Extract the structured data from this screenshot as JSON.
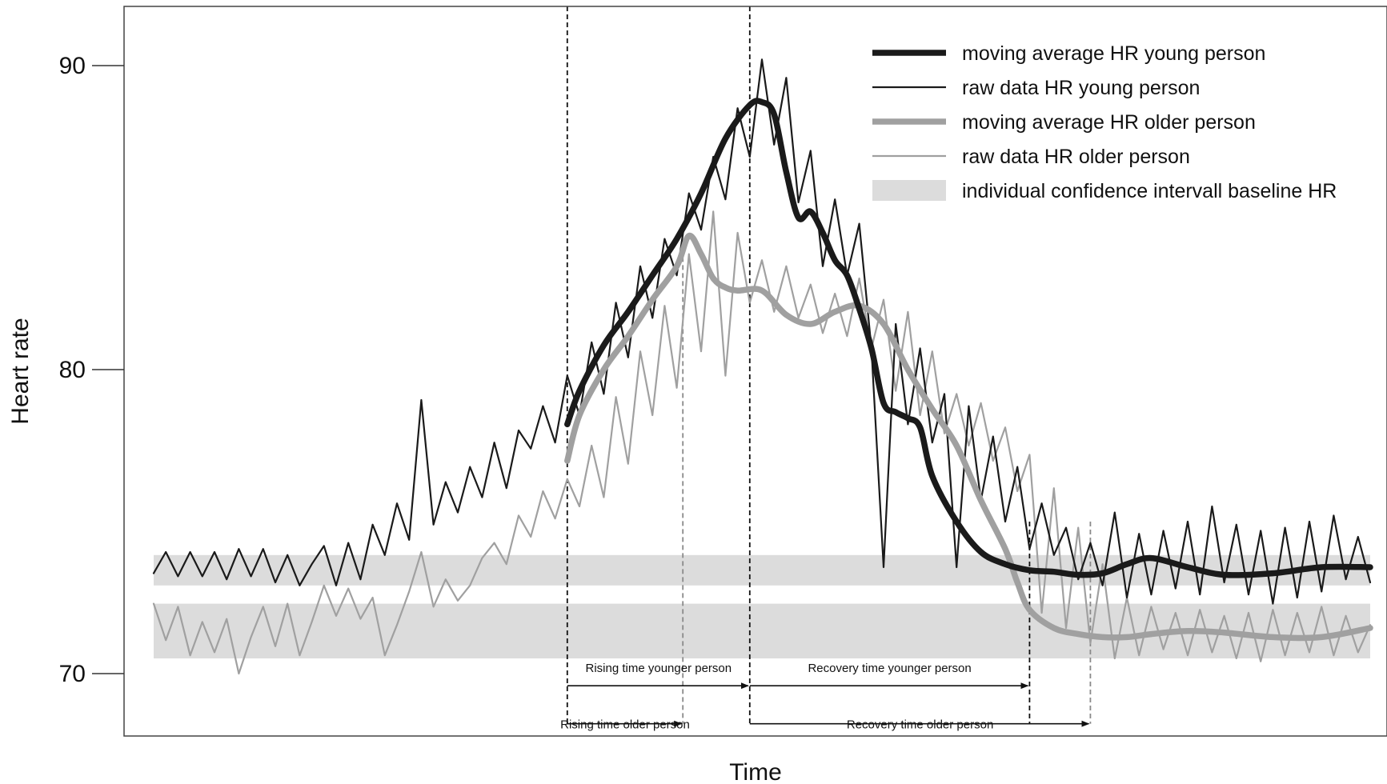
{
  "chart_data": {
    "type": "line",
    "title": "",
    "xlabel": "Time",
    "ylabel": "Heart rate",
    "xlim": [
      0,
      100
    ],
    "ylim": [
      68,
      92
    ],
    "yticks": [
      70,
      80,
      90
    ],
    "grid": false,
    "legend_position": "top-right",
    "colors": {
      "young": "#1a1a1a",
      "older": "#a0a0a0",
      "band": "#dcdcdc",
      "frame": "#444444"
    },
    "bands": [
      {
        "name": "young",
        "range": [
          72.9,
          73.9
        ]
      },
      {
        "name": "older",
        "range": [
          70.5,
          72.3
        ]
      }
    ],
    "series": [
      {
        "name": "moving average HR young person",
        "key": "young_avg",
        "x": [
          34,
          35,
          37,
          39,
          41,
          43,
          45,
          47,
          49,
          50,
          51,
          52,
          53,
          54,
          55,
          56,
          57,
          58,
          59,
          60,
          61,
          62,
          63,
          64,
          66,
          68,
          70,
          72,
          74,
          76,
          78,
          80,
          82,
          85,
          88,
          92,
          96,
          100
        ],
        "y": [
          78.2,
          79.3,
          80.8,
          81.9,
          83.1,
          84.3,
          85.8,
          87.6,
          88.7,
          88.8,
          88.4,
          86.5,
          85.0,
          85.2,
          84.5,
          83.6,
          83.1,
          82.0,
          80.7,
          78.9,
          78.6,
          78.4,
          78.1,
          76.5,
          75.0,
          74.0,
          73.6,
          73.4,
          73.35,
          73.25,
          73.3,
          73.6,
          73.8,
          73.5,
          73.25,
          73.3,
          73.5,
          73.5
        ]
      },
      {
        "name": "raw data HR young person",
        "key": "young_raw",
        "x": [
          0,
          1,
          2,
          3,
          4,
          5,
          6,
          7,
          8,
          9,
          10,
          11,
          12,
          13,
          14,
          15,
          16,
          17,
          18,
          19,
          20,
          21,
          22,
          23,
          24,
          25,
          26,
          27,
          28,
          29,
          30,
          31,
          32,
          33,
          34,
          35,
          36,
          37,
          38,
          39,
          40,
          41,
          42,
          43,
          44,
          45,
          46,
          47,
          48,
          49,
          50,
          51,
          52,
          53,
          54,
          55,
          56,
          57,
          58,
          59,
          60,
          61,
          62,
          63,
          64,
          65,
          66,
          67,
          68,
          69,
          70,
          71,
          72,
          73,
          74,
          75,
          76,
          77,
          78,
          79,
          80,
          81,
          82,
          83,
          84,
          85,
          86,
          87,
          88,
          89,
          90,
          91,
          92,
          93,
          94,
          95,
          96,
          97,
          98,
          99,
          100
        ],
        "y": [
          73.3,
          74.0,
          73.2,
          74.0,
          73.2,
          74.0,
          73.1,
          74.1,
          73.2,
          74.1,
          73.0,
          73.9,
          72.9,
          73.6,
          74.2,
          72.9,
          74.3,
          73.1,
          74.9,
          73.9,
          75.6,
          74.4,
          79.0,
          74.9,
          76.3,
          75.3,
          76.8,
          75.8,
          77.6,
          76.1,
          78.0,
          77.4,
          78.8,
          77.6,
          79.8,
          78.5,
          80.9,
          79.2,
          82.2,
          80.4,
          83.4,
          81.7,
          84.3,
          83.1,
          85.8,
          84.6,
          87.0,
          85.6,
          88.6,
          87.0,
          90.2,
          87.4,
          89.6,
          85.5,
          87.2,
          83.4,
          85.6,
          83.1,
          84.8,
          80.7,
          73.5,
          81.5,
          78.2,
          80.7,
          77.6,
          79.2,
          73.5,
          78.8,
          75.7,
          77.8,
          75.0,
          76.8,
          74.1,
          75.6,
          73.9,
          74.8,
          73.1,
          74.3,
          72.9,
          75.3,
          72.5,
          74.6,
          72.6,
          74.7,
          72.8,
          75.0,
          72.6,
          75.5,
          73.0,
          74.9,
          72.6,
          74.7,
          72.3,
          74.8,
          72.5,
          75.0,
          72.7,
          75.2,
          73.1,
          74.5,
          73.0
        ]
      },
      {
        "name": "moving average HR older person",
        "key": "older_avg",
        "x": [
          34,
          35,
          37,
          39,
          41,
          43,
          44,
          45,
          46,
          47,
          48,
          50,
          52,
          54,
          56,
          58,
          60,
          62,
          64,
          66,
          68,
          70,
          71,
          72,
          74,
          76,
          78,
          80,
          82,
          85,
          88,
          92,
          96,
          100
        ],
        "y": [
          77.0,
          78.5,
          80.0,
          81.1,
          82.3,
          83.4,
          84.4,
          83.8,
          83.0,
          82.7,
          82.6,
          82.6,
          81.8,
          81.5,
          81.9,
          82.1,
          81.5,
          80.0,
          78.7,
          77.5,
          75.7,
          74.1,
          73.0,
          72.1,
          71.5,
          71.3,
          71.2,
          71.2,
          71.3,
          71.4,
          71.35,
          71.2,
          71.2,
          71.5
        ]
      },
      {
        "name": "raw data HR older person",
        "key": "older_raw",
        "x": [
          0,
          1,
          2,
          3,
          4,
          5,
          6,
          7,
          8,
          9,
          10,
          11,
          12,
          13,
          14,
          15,
          16,
          17,
          18,
          19,
          20,
          21,
          22,
          23,
          24,
          25,
          26,
          27,
          28,
          29,
          30,
          31,
          32,
          33,
          34,
          35,
          36,
          37,
          38,
          39,
          40,
          41,
          42,
          43,
          44,
          45,
          46,
          47,
          48,
          49,
          50,
          51,
          52,
          53,
          54,
          55,
          56,
          57,
          58,
          59,
          60,
          61,
          62,
          63,
          64,
          65,
          66,
          67,
          68,
          69,
          70,
          71,
          72,
          73,
          74,
          75,
          76,
          77,
          78,
          79,
          80,
          81,
          82,
          83,
          84,
          85,
          86,
          87,
          88,
          89,
          90,
          91,
          92,
          93,
          94,
          95,
          96,
          97,
          98,
          99,
          100
        ],
        "y": [
          72.3,
          71.1,
          72.2,
          70.6,
          71.7,
          70.7,
          71.8,
          70.0,
          71.2,
          72.2,
          70.9,
          72.3,
          70.6,
          71.7,
          72.9,
          71.9,
          72.8,
          71.8,
          72.5,
          70.6,
          71.6,
          72.7,
          74.0,
          72.2,
          73.1,
          72.4,
          72.9,
          73.8,
          74.3,
          73.6,
          75.2,
          74.5,
          76.0,
          75.1,
          76.4,
          75.5,
          77.5,
          75.8,
          79.1,
          76.9,
          80.6,
          78.5,
          82.1,
          79.4,
          83.8,
          80.6,
          85.2,
          79.8,
          84.5,
          82.2,
          83.6,
          81.9,
          83.4,
          81.7,
          82.8,
          81.2,
          82.5,
          81.1,
          83.0,
          80.7,
          82.3,
          79.3,
          81.9,
          78.5,
          80.6,
          77.9,
          79.2,
          77.5,
          78.9,
          77.0,
          78.1,
          76.0,
          77.2,
          72.0,
          76.1,
          71.5,
          74.8,
          71.0,
          73.6,
          70.5,
          72.5,
          70.6,
          72.2,
          70.8,
          72.0,
          70.6,
          72.1,
          70.7,
          71.9,
          70.5,
          72.0,
          70.4,
          72.1,
          70.6,
          72.0,
          70.7,
          72.2,
          70.6,
          71.9,
          70.7,
          71.6
        ]
      }
    ],
    "markers": [
      {
        "name": "rise start",
        "x": 34,
        "y_top": 92,
        "style": "black"
      },
      {
        "name": "peak young",
        "x": 49,
        "y_top": 92,
        "style": "black"
      },
      {
        "name": "peak older",
        "x": 43.5,
        "y_top": 83.7,
        "style": "gray"
      },
      {
        "name": "recovery end young",
        "x": 72,
        "y_top": 75.0,
        "style": "black"
      },
      {
        "name": "recovery end older",
        "x": 77,
        "y_top": 75.0,
        "style": "gray"
      }
    ],
    "legend": [
      {
        "label": "moving average HR young person",
        "swatch": "thick-dark"
      },
      {
        "label": "raw data HR young person",
        "swatch": "thin-dark"
      },
      {
        "label": "moving average HR older person",
        "swatch": "thick-gray"
      },
      {
        "label": "raw data HR older person",
        "swatch": "thin-gray"
      },
      {
        "label": "individual confidence intervall baseline HR",
        "swatch": "band"
      }
    ],
    "annotations": [
      {
        "label": "Rising time younger person",
        "x_start": 34,
        "x_end": 49,
        "y": 69.6,
        "text_y": 70.05
      },
      {
        "label": "Recovery time younger person",
        "x_start": 49,
        "x_end": 72,
        "y": 69.6,
        "text_y": 70.05
      },
      {
        "label": "Rising time older person",
        "x_start": 34,
        "x_end": 43.5,
        "y": 68.35,
        "text_y": 68.2
      },
      {
        "label": "Recovery time older person",
        "x_start": 49,
        "x_end": 77,
        "y": 68.35,
        "text_y": 68.2
      }
    ]
  }
}
